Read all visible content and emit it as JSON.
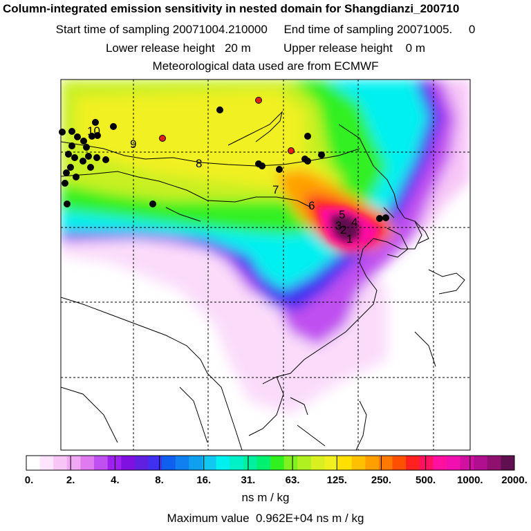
{
  "header": {
    "title": "Column-integrated emission sensitivity in nested domain for Shangdianzi_200710",
    "sampling": "Start time of sampling 20071004.210000     End time of sampling 20071005.     0",
    "release": "Lower release height   20 m          Upper release height    0 m",
    "meteo": "Meteorological data used are from ECMWF"
  },
  "colorbar": {
    "labels": [
      "0.",
      "2.",
      "4.",
      "8.",
      "16.",
      "31.",
      "63.",
      "125.",
      "250.",
      "500.",
      "1000.",
      "2000."
    ],
    "colors": [
      "#ffffff",
      "#fde6fd",
      "#f7c6f7",
      "#f0a8f5",
      "#e07af0",
      "#c050f0",
      "#a020f0",
      "#8010e0",
      "#6020e0",
      "#4030f0",
      "#1060f0",
      "#1080f0",
      "#10a0f0",
      "#10c8f0",
      "#00f0f0",
      "#00f0c8",
      "#00f0a0",
      "#00f070",
      "#30f020",
      "#80f020",
      "#b0f020",
      "#d8f020",
      "#f0f020",
      "#ffe000",
      "#ffc000",
      "#ffa000",
      "#ff7800",
      "#ff5000",
      "#ff2020",
      "#ff1060",
      "#ff10a0",
      "#f010b0",
      "#d010a0",
      "#b01090",
      "#901070",
      "#601050"
    ],
    "units": "ns m / kg"
  },
  "footer": {
    "max_value": "Maximum value  0.962E+04 ns m / kg"
  },
  "map": {
    "numbered_labels": [
      "10",
      "9",
      "8",
      "7",
      "6",
      "5",
      "3",
      "2",
      "4",
      "1"
    ],
    "station_dot_color": "#000000",
    "highlight_dot_color": "#e02010"
  }
}
